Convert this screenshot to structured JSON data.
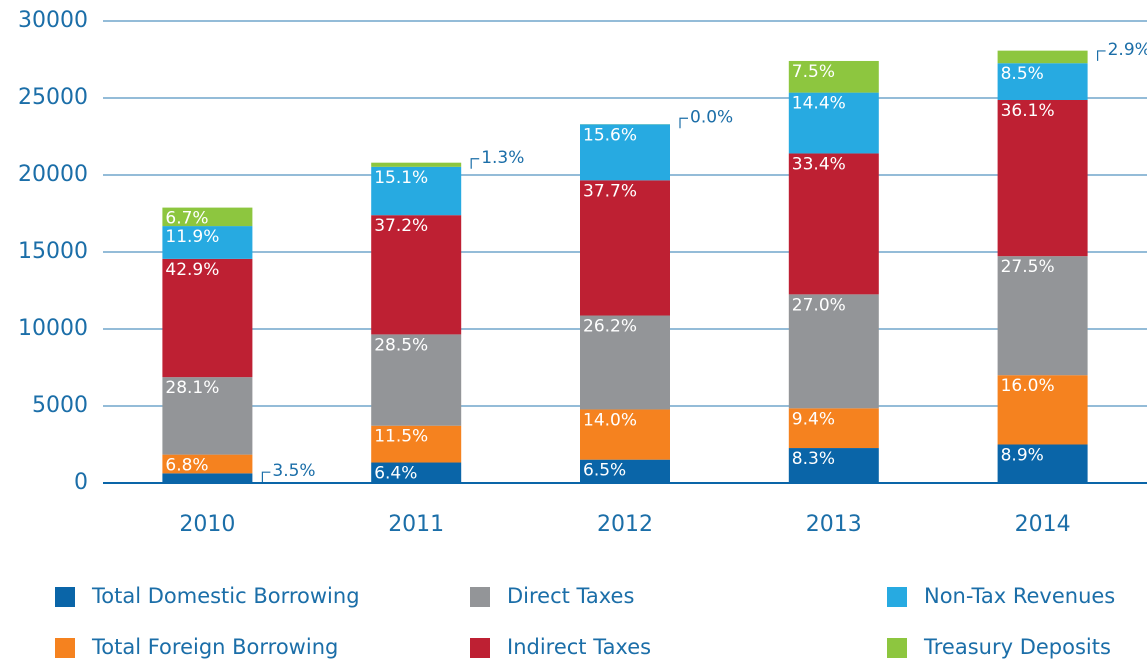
{
  "chart_data": {
    "type": "stacked-bar",
    "categories": [
      "2010",
      "2011",
      "2012",
      "2013",
      "2014"
    ],
    "ylim": [
      0,
      30000
    ],
    "yticks": [
      0,
      5000,
      10000,
      15000,
      20000,
      25000,
      30000
    ],
    "grid": true,
    "legend": "bottom",
    "series": [
      {
        "name": "Total Domestic Borrowing",
        "color": "#0a65a8",
        "values": [
          626,
          1330,
          1515,
          2270,
          2500
        ],
        "share_labels": [
          "3.5%",
          "6.4%",
          "6.5%",
          "8.3%",
          "8.9%"
        ]
      },
      {
        "name": "Total Foreign Borrowing",
        "color": "#f5821f",
        "values": [
          1217,
          2390,
          3260,
          2580,
          4500
        ],
        "share_labels": [
          "6.8%",
          "11.5%",
          "14.0%",
          "9.4%",
          "16.0%"
        ]
      },
      {
        "name": "Direct Taxes",
        "color": "#939598",
        "values": [
          5030,
          5930,
          6100,
          7400,
          7730
        ],
        "share_labels": [
          "28.1%",
          "28.5%",
          "26.2%",
          "27.0%",
          "27.5%"
        ]
      },
      {
        "name": "Indirect Taxes",
        "color": "#be2033",
        "values": [
          7680,
          7740,
          8780,
          9150,
          10140
        ],
        "share_labels": [
          "42.9%",
          "37.2%",
          "37.7%",
          "33.4%",
          "36.1%"
        ]
      },
      {
        "name": "Non-Tax Revenues",
        "color": "#27aae1",
        "values": [
          2130,
          3140,
          3635,
          3950,
          2390
        ],
        "share_labels": [
          "11.9%",
          "15.1%",
          "15.6%",
          "14.4%",
          "8.5%"
        ]
      },
      {
        "name": "Treasury Deposits",
        "color": "#8dc63f",
        "values": [
          1200,
          270,
          10,
          2055,
          815
        ],
        "share_labels": [
          "6.7%",
          "1.3%",
          "0.0%",
          "7.5%",
          "2.9%"
        ]
      }
    ]
  }
}
